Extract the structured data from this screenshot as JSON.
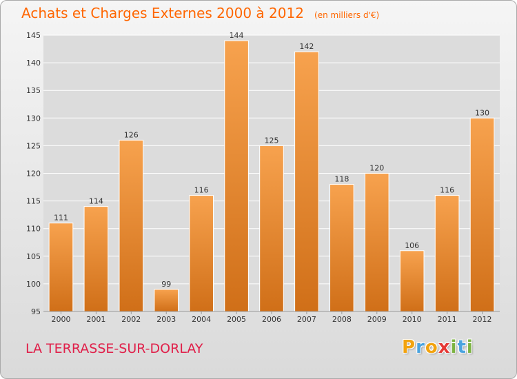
{
  "chart_data": {
    "type": "bar",
    "title": "Achats et Charges Externes 2000 à 2012",
    "subtitle": "(en milliers d'€)",
    "categories": [
      "2000",
      "2001",
      "2002",
      "2003",
      "2004",
      "2005",
      "2006",
      "2007",
      "2008",
      "2009",
      "2010",
      "2011",
      "2012"
    ],
    "values": [
      111,
      114,
      126,
      99,
      116,
      144,
      125,
      142,
      118,
      120,
      106,
      116,
      130
    ],
    "data_labels": [
      "111",
      "114",
      "126",
      "99",
      "116",
      "144",
      "125",
      "142",
      "118",
      "120",
      "106",
      "116",
      "130"
    ],
    "y_ticks": [
      95,
      100,
      105,
      110,
      115,
      120,
      125,
      130,
      135,
      140,
      145
    ],
    "ylim": [
      95,
      145
    ],
    "xlabel": "",
    "ylabel": "",
    "grid": true,
    "legend": "none",
    "bar_color_top": "#f7a24e",
    "bar_color_bottom": "#d06f18",
    "grid_color": "#ffffff",
    "title_color": "#ff6600"
  },
  "location": "LA TERRASSE-SUR-DORLAY",
  "logo": {
    "letters": [
      "P",
      "r",
      "o",
      "x",
      "i",
      "t",
      "i"
    ],
    "colors": [
      "#f2a30f",
      "#4aa3df",
      "#f2a30f",
      "#e53935",
      "#7cb342",
      "#4aa3df",
      "#7cb342"
    ]
  }
}
